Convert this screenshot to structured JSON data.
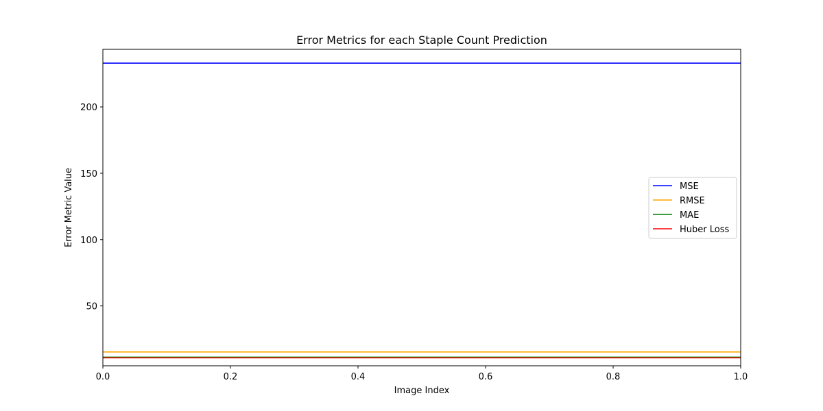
{
  "chart_data": {
    "type": "line",
    "title": "Error Metrics for each Staple Count Prediction",
    "xlabel": "Image Index",
    "ylabel": "Error Metric Value",
    "xlim": [
      0.0,
      1.0
    ],
    "ylim": [
      4.9,
      243.4
    ],
    "xticks": [
      0.0,
      0.2,
      0.4,
      0.6,
      0.8,
      1.0
    ],
    "xtick_labels": [
      "0.0",
      "0.2",
      "0.4",
      "0.6",
      "0.8",
      "1.0"
    ],
    "yticks": [
      50,
      100,
      150,
      200
    ],
    "ytick_labels": [
      "50",
      "100",
      "150",
      "200"
    ],
    "grid": false,
    "legend_position": "center-right",
    "series": [
      {
        "name": "MSE",
        "color": "#0000ff",
        "x": [
          0.0,
          1.0
        ],
        "y": [
          233.0,
          233.0
        ]
      },
      {
        "name": "RMSE",
        "color": "#ffa500",
        "x": [
          0.0,
          1.0
        ],
        "y": [
          15.3,
          15.3
        ]
      },
      {
        "name": "MAE",
        "color": "#008000",
        "x": [
          0.0,
          1.0
        ],
        "y": [
          11.4,
          11.4
        ]
      },
      {
        "name": "Huber Loss",
        "color": "#ff0000",
        "x": [
          0.0,
          1.0
        ],
        "y": [
          10.9,
          10.9
        ]
      }
    ]
  }
}
